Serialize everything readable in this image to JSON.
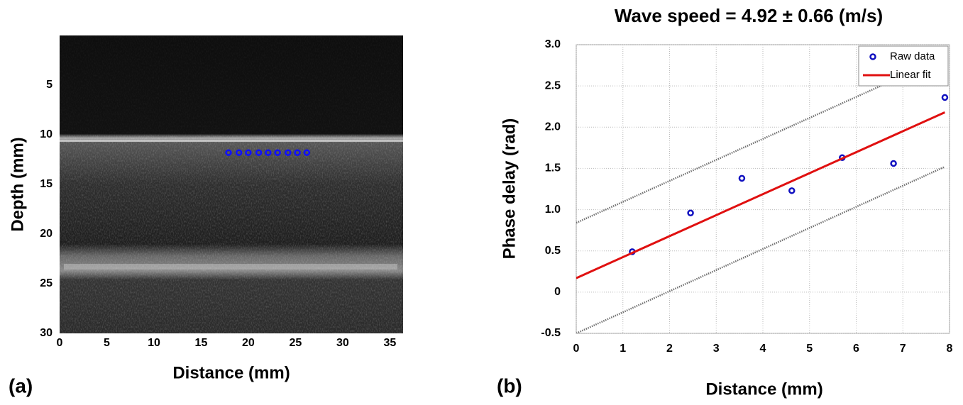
{
  "chart_data": [
    {
      "type": "scatter",
      "panel_label": "(a)",
      "xlabel": "Distance (mm)",
      "ylabel": "Depth (mm)",
      "xlim": [
        0,
        36.4
      ],
      "xticks": [
        0,
        5,
        10,
        15,
        20,
        25,
        30,
        35
      ],
      "ylim": [
        30,
        0
      ],
      "yticks": [
        5,
        10,
        15,
        20,
        25,
        30
      ],
      "grid": false,
      "series": [
        {
          "color": "#1010ff",
          "mode": "markers",
          "x": [
            17.9,
            19,
            20,
            21.1,
            22.1,
            23.1,
            24.2,
            25.2,
            26.2
          ],
          "values": [
            11.8,
            11.8,
            11.8,
            11.8,
            11.8,
            11.8,
            11.8,
            11.8,
            11.8
          ]
        }
      ]
    },
    {
      "type": "scatter",
      "title": "Wave speed = 4.92 ± 0.66 (m/s)",
      "panel_label": "(b)",
      "xlabel": "Distance (mm)",
      "ylabel": "Phase delay (rad)",
      "xlim": [
        0,
        8
      ],
      "xticks": [
        0,
        1,
        2,
        3,
        4,
        5,
        6,
        7,
        8
      ],
      "ylim": [
        -0.5,
        3.0
      ],
      "yticks": [
        -0.5,
        0,
        0.5,
        {
          "value": 1.0,
          "label": "1.0"
        },
        1.5,
        {
          "value": 2.0,
          "label": "2.0"
        },
        2.5,
        {
          "value": 3.0,
          "label": "3.0"
        }
      ],
      "grid": true,
      "legend": "upper right",
      "series": [
        {
          "name": "Raw data",
          "color": "#1010c0",
          "mode": "markers",
          "x": [
            1.2,
            2.45,
            3.55,
            4.62,
            5.7,
            6.8,
            7.9
          ],
          "values": [
            0.49,
            0.96,
            1.38,
            1.23,
            1.63,
            1.56,
            2.36
          ]
        },
        {
          "name": "Linear fit",
          "color": "#e01010",
          "mode": "line",
          "x": [
            0,
            7.9
          ],
          "values": [
            0.17,
            2.18
          ]
        },
        {
          "color": "#707070",
          "mode": "line",
          "style": "dotted",
          "x": [
            0,
            7.9
          ],
          "values": [
            0.84,
            2.85
          ]
        },
        {
          "color": "#707070",
          "mode": "line",
          "style": "dotted",
          "x": [
            0,
            7.9
          ],
          "values": [
            -0.5,
            1.52
          ]
        }
      ]
    }
  ]
}
